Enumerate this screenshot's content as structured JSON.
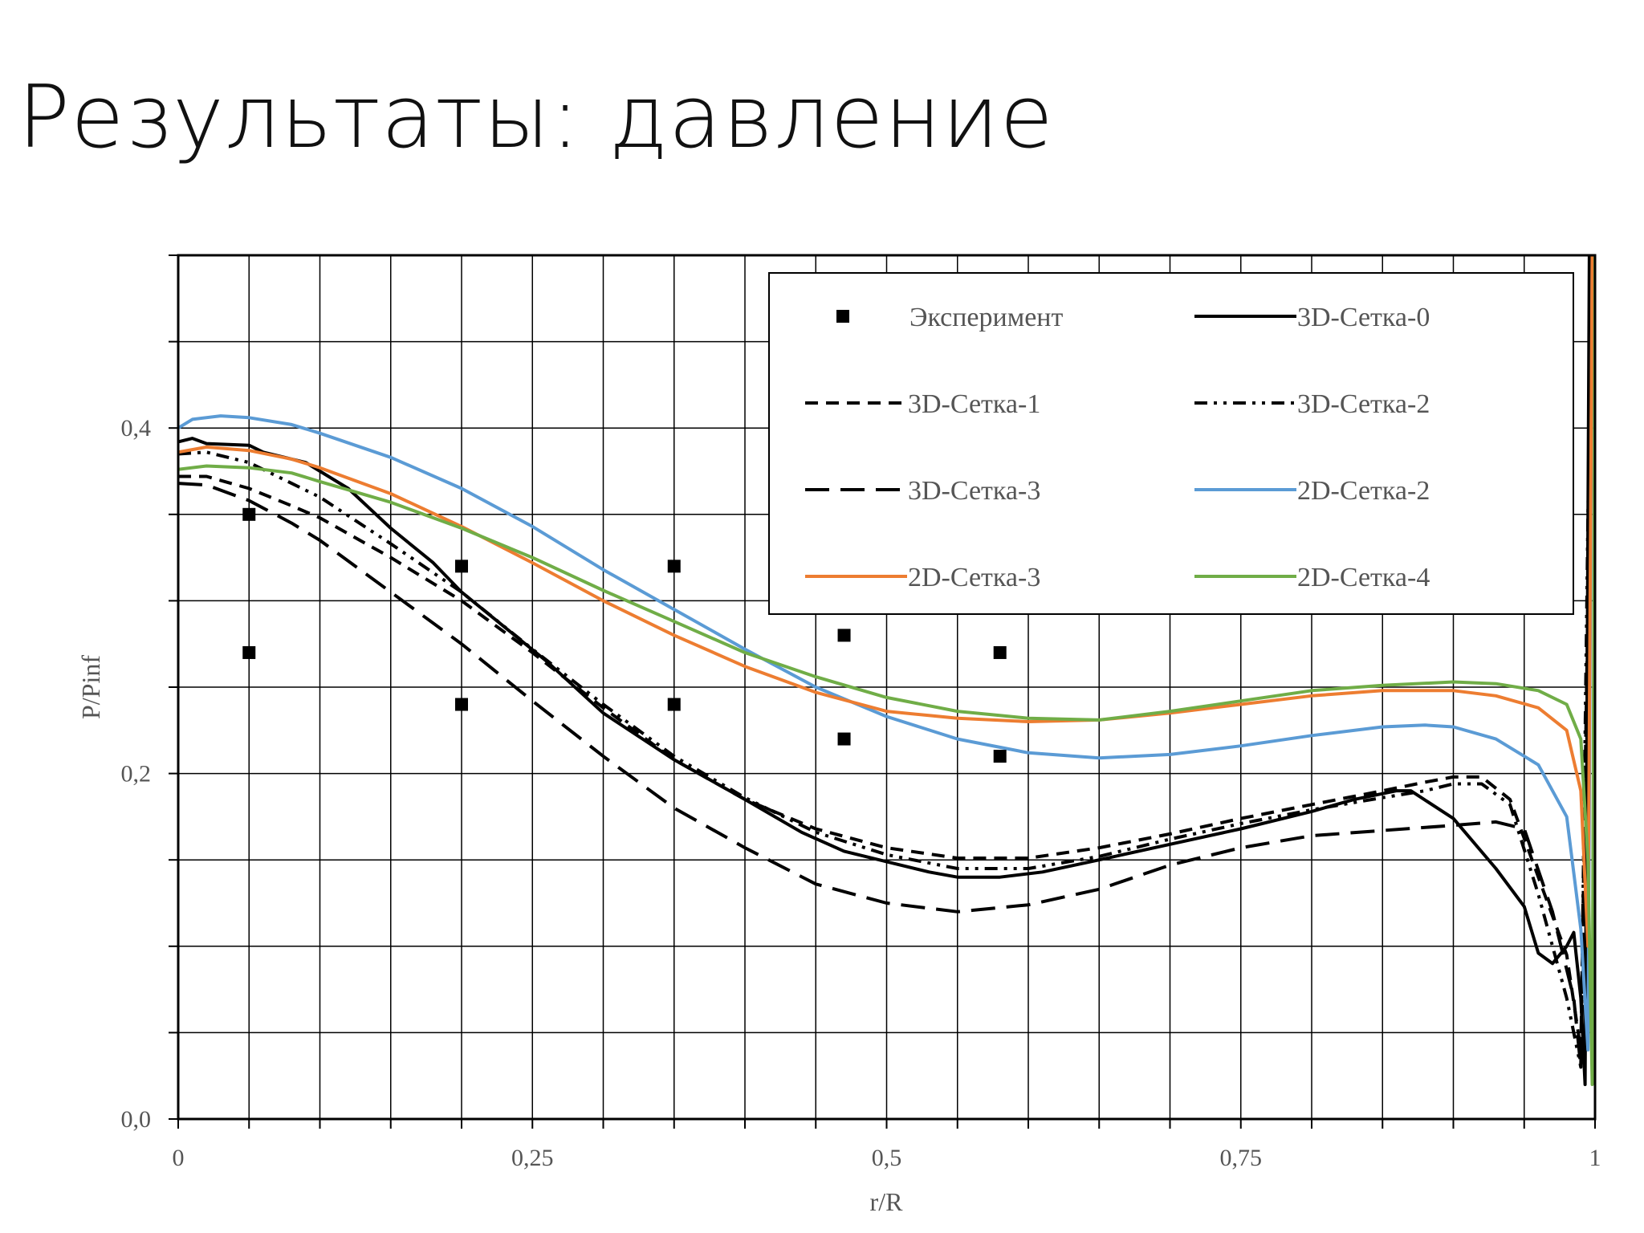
{
  "title": "Результаты: давление",
  "chart_data": {
    "type": "line",
    "xlabel": "r/R",
    "ylabel": "P/Pinf",
    "xlim": [
      0,
      1
    ],
    "ylim": [
      0,
      0.5
    ],
    "x_ticks": [
      0,
      0.25,
      0.5,
      0.75,
      1
    ],
    "x_tick_labels": [
      "0",
      "0,25",
      "0,5",
      "0,75",
      "1"
    ],
    "y_ticks": [
      0,
      0.2,
      0.4
    ],
    "y_tick_labels": [
      "0,0",
      "0,2",
      "0,4"
    ],
    "grid": true,
    "legend_position": "top-right",
    "scatter": {
      "name": "Эксперимент",
      "points": [
        [
          0.05,
          0.35
        ],
        [
          0.05,
          0.27
        ],
        [
          0.2,
          0.32
        ],
        [
          0.2,
          0.24
        ],
        [
          0.35,
          0.32
        ],
        [
          0.35,
          0.24
        ],
        [
          0.47,
          0.28
        ],
        [
          0.47,
          0.22
        ],
        [
          0.58,
          0.27
        ],
        [
          0.58,
          0.21
        ]
      ]
    },
    "series": [
      {
        "name": "3D-Сетка-0",
        "color": "#000000",
        "dash": "solid",
        "points": [
          [
            0,
            0.392
          ],
          [
            0.01,
            0.394
          ],
          [
            0.02,
            0.391
          ],
          [
            0.05,
            0.39
          ],
          [
            0.06,
            0.386
          ],
          [
            0.09,
            0.38
          ],
          [
            0.12,
            0.365
          ],
          [
            0.15,
            0.342
          ],
          [
            0.18,
            0.322
          ],
          [
            0.2,
            0.305
          ],
          [
            0.23,
            0.285
          ],
          [
            0.26,
            0.265
          ],
          [
            0.3,
            0.235
          ],
          [
            0.35,
            0.208
          ],
          [
            0.4,
            0.185
          ],
          [
            0.44,
            0.166
          ],
          [
            0.47,
            0.155
          ],
          [
            0.5,
            0.149
          ],
          [
            0.53,
            0.143
          ],
          [
            0.55,
            0.14
          ],
          [
            0.58,
            0.14
          ],
          [
            0.61,
            0.143
          ],
          [
            0.65,
            0.15
          ],
          [
            0.7,
            0.159
          ],
          [
            0.75,
            0.168
          ],
          [
            0.8,
            0.178
          ],
          [
            0.83,
            0.185
          ],
          [
            0.86,
            0.19
          ],
          [
            0.87,
            0.19
          ],
          [
            0.9,
            0.174
          ],
          [
            0.93,
            0.145
          ],
          [
            0.95,
            0.123
          ],
          [
            0.96,
            0.096
          ],
          [
            0.97,
            0.09
          ],
          [
            0.98,
            0.1
          ],
          [
            0.985,
            0.108
          ],
          [
            0.99,
            0.07
          ],
          [
            0.993,
            0.02
          ],
          [
            0.996,
            0.5
          ]
        ]
      },
      {
        "name": "3D-Сетка-1",
        "color": "#000000",
        "dash": "medium",
        "points": [
          [
            0,
            0.372
          ],
          [
            0.02,
            0.372
          ],
          [
            0.05,
            0.365
          ],
          [
            0.08,
            0.355
          ],
          [
            0.1,
            0.348
          ],
          [
            0.15,
            0.325
          ],
          [
            0.2,
            0.3
          ],
          [
            0.25,
            0.27
          ],
          [
            0.3,
            0.238
          ],
          [
            0.35,
            0.208
          ],
          [
            0.4,
            0.185
          ],
          [
            0.45,
            0.168
          ],
          [
            0.5,
            0.157
          ],
          [
            0.55,
            0.151
          ],
          [
            0.6,
            0.151
          ],
          [
            0.65,
            0.157
          ],
          [
            0.7,
            0.165
          ],
          [
            0.75,
            0.174
          ],
          [
            0.8,
            0.182
          ],
          [
            0.85,
            0.19
          ],
          [
            0.88,
            0.195
          ],
          [
            0.9,
            0.198
          ],
          [
            0.92,
            0.198
          ],
          [
            0.94,
            0.185
          ],
          [
            0.96,
            0.14
          ],
          [
            0.98,
            0.095
          ],
          [
            0.99,
            0.04
          ],
          [
            0.995,
            0.3
          ],
          [
            0.997,
            0.5
          ]
        ]
      },
      {
        "name": "3D-Сетка-2",
        "color": "#000000",
        "dash": "dashdotdot",
        "points": [
          [
            0,
            0.385
          ],
          [
            0.02,
            0.386
          ],
          [
            0.05,
            0.38
          ],
          [
            0.08,
            0.368
          ],
          [
            0.1,
            0.36
          ],
          [
            0.15,
            0.333
          ],
          [
            0.2,
            0.305
          ],
          [
            0.25,
            0.272
          ],
          [
            0.3,
            0.24
          ],
          [
            0.35,
            0.21
          ],
          [
            0.4,
            0.186
          ],
          [
            0.45,
            0.166
          ],
          [
            0.5,
            0.153
          ],
          [
            0.55,
            0.145
          ],
          [
            0.6,
            0.145
          ],
          [
            0.65,
            0.152
          ],
          [
            0.7,
            0.162
          ],
          [
            0.75,
            0.171
          ],
          [
            0.8,
            0.179
          ],
          [
            0.85,
            0.186
          ],
          [
            0.88,
            0.19
          ],
          [
            0.9,
            0.194
          ],
          [
            0.92,
            0.194
          ],
          [
            0.94,
            0.182
          ],
          [
            0.96,
            0.13
          ],
          [
            0.98,
            0.07
          ],
          [
            0.99,
            0.03
          ],
          [
            0.995,
            0.35
          ],
          [
            0.998,
            0.5
          ]
        ]
      },
      {
        "name": "3D-Сетка-3",
        "color": "#000000",
        "dash": "long",
        "points": [
          [
            0,
            0.368
          ],
          [
            0.02,
            0.367
          ],
          [
            0.05,
            0.358
          ],
          [
            0.08,
            0.345
          ],
          [
            0.1,
            0.335
          ],
          [
            0.15,
            0.305
          ],
          [
            0.2,
            0.275
          ],
          [
            0.25,
            0.242
          ],
          [
            0.3,
            0.21
          ],
          [
            0.35,
            0.18
          ],
          [
            0.4,
            0.157
          ],
          [
            0.45,
            0.136
          ],
          [
            0.5,
            0.125
          ],
          [
            0.55,
            0.12
          ],
          [
            0.6,
            0.124
          ],
          [
            0.65,
            0.133
          ],
          [
            0.7,
            0.147
          ],
          [
            0.75,
            0.157
          ],
          [
            0.8,
            0.164
          ],
          [
            0.85,
            0.167
          ],
          [
            0.9,
            0.17
          ],
          [
            0.93,
            0.172
          ],
          [
            0.95,
            0.168
          ],
          [
            0.97,
            0.12
          ],
          [
            0.985,
            0.07
          ],
          [
            0.99,
            0.03
          ],
          [
            0.995,
            0.2
          ],
          [
            0.998,
            0.5
          ]
        ]
      },
      {
        "name": "2D-Сетка-2",
        "color": "#5b9bd5",
        "dash": "solid",
        "points": [
          [
            0,
            0.4
          ],
          [
            0.01,
            0.405
          ],
          [
            0.03,
            0.407
          ],
          [
            0.05,
            0.406
          ],
          [
            0.08,
            0.402
          ],
          [
            0.1,
            0.397
          ],
          [
            0.15,
            0.383
          ],
          [
            0.2,
            0.365
          ],
          [
            0.25,
            0.343
          ],
          [
            0.3,
            0.318
          ],
          [
            0.35,
            0.295
          ],
          [
            0.4,
            0.272
          ],
          [
            0.45,
            0.25
          ],
          [
            0.5,
            0.233
          ],
          [
            0.55,
            0.22
          ],
          [
            0.6,
            0.212
          ],
          [
            0.65,
            0.209
          ],
          [
            0.7,
            0.211
          ],
          [
            0.75,
            0.216
          ],
          [
            0.8,
            0.222
          ],
          [
            0.85,
            0.227
          ],
          [
            0.88,
            0.228
          ],
          [
            0.9,
            0.227
          ],
          [
            0.93,
            0.22
          ],
          [
            0.96,
            0.205
          ],
          [
            0.98,
            0.175
          ],
          [
            0.99,
            0.11
          ],
          [
            0.995,
            0.04
          ],
          [
            0.998,
            0.5
          ]
        ]
      },
      {
        "name": "2D-Сетка-3",
        "color": "#ed7d31",
        "dash": "solid",
        "points": [
          [
            0,
            0.386
          ],
          [
            0.02,
            0.389
          ],
          [
            0.05,
            0.387
          ],
          [
            0.08,
            0.382
          ],
          [
            0.1,
            0.377
          ],
          [
            0.15,
            0.362
          ],
          [
            0.2,
            0.343
          ],
          [
            0.25,
            0.322
          ],
          [
            0.3,
            0.3
          ],
          [
            0.35,
            0.28
          ],
          [
            0.4,
            0.262
          ],
          [
            0.45,
            0.247
          ],
          [
            0.5,
            0.236
          ],
          [
            0.55,
            0.232
          ],
          [
            0.6,
            0.23
          ],
          [
            0.65,
            0.231
          ],
          [
            0.7,
            0.235
          ],
          [
            0.75,
            0.24
          ],
          [
            0.8,
            0.245
          ],
          [
            0.85,
            0.248
          ],
          [
            0.9,
            0.248
          ],
          [
            0.93,
            0.245
          ],
          [
            0.96,
            0.238
          ],
          [
            0.98,
            0.225
          ],
          [
            0.99,
            0.19
          ],
          [
            0.995,
            0.1
          ],
          [
            0.998,
            0.5
          ]
        ]
      },
      {
        "name": "2D-Сетка-4",
        "color": "#70ad47",
        "dash": "solid",
        "points": [
          [
            0,
            0.376
          ],
          [
            0.02,
            0.378
          ],
          [
            0.05,
            0.377
          ],
          [
            0.08,
            0.374
          ],
          [
            0.1,
            0.369
          ],
          [
            0.15,
            0.357
          ],
          [
            0.2,
            0.342
          ],
          [
            0.25,
            0.325
          ],
          [
            0.3,
            0.306
          ],
          [
            0.35,
            0.288
          ],
          [
            0.4,
            0.27
          ],
          [
            0.45,
            0.256
          ],
          [
            0.5,
            0.244
          ],
          [
            0.55,
            0.236
          ],
          [
            0.6,
            0.232
          ],
          [
            0.65,
            0.231
          ],
          [
            0.7,
            0.236
          ],
          [
            0.75,
            0.242
          ],
          [
            0.8,
            0.248
          ],
          [
            0.85,
            0.251
          ],
          [
            0.9,
            0.253
          ],
          [
            0.93,
            0.252
          ],
          [
            0.96,
            0.248
          ],
          [
            0.98,
            0.24
          ],
          [
            0.99,
            0.22
          ],
          [
            0.995,
            0.15
          ],
          [
            0.998,
            0.02
          ],
          [
            1,
            0.5
          ]
        ]
      }
    ]
  }
}
